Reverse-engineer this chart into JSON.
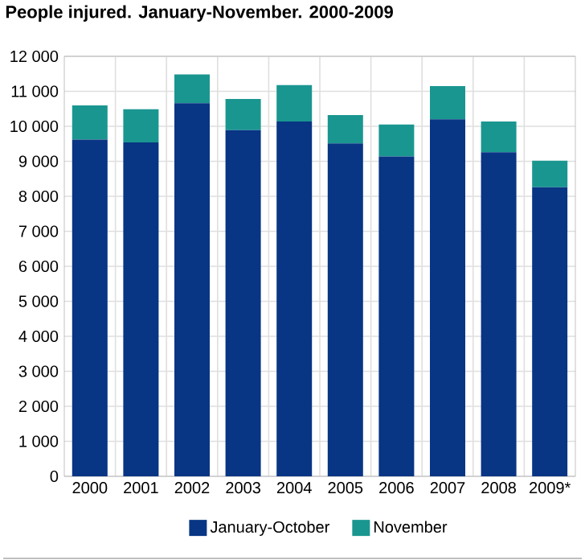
{
  "chart_data": {
    "type": "bar",
    "title": "People injured. January-November. 2000-2009",
    "stacked": true,
    "categories": [
      "2000",
      "2001",
      "2002",
      "2003",
      "2004",
      "2005",
      "2006",
      "2007",
      "2008",
      "2009*"
    ],
    "series": [
      {
        "name": "January-October",
        "color": "#083584",
        "values": [
          9620,
          9540,
          10660,
          9890,
          10140,
          9510,
          9140,
          10200,
          9260,
          8260
        ]
      },
      {
        "name": "November",
        "color": "#1a9690",
        "values": [
          980,
          950,
          820,
          890,
          1040,
          810,
          910,
          950,
          880,
          760
        ]
      }
    ],
    "ylim": [
      0,
      12000
    ],
    "yticks": [
      0,
      {
        "value": 1000,
        "label": "1 000"
      },
      {
        "value": 2000,
        "label": "2 000"
      },
      {
        "value": 3000,
        "label": "3 000"
      },
      {
        "value": 4000,
        "label": "4 000"
      },
      {
        "value": 5000,
        "label": "5 000"
      },
      {
        "value": 6000,
        "label": "6 000"
      },
      {
        "value": 7000,
        "label": "7 000"
      },
      {
        "value": 8000,
        "label": "8 000"
      },
      {
        "value": 9000,
        "label": "9 000"
      },
      {
        "value": 10000,
        "label": "10 000"
      },
      {
        "value": 11000,
        "label": "11 000"
      },
      {
        "value": 12000,
        "label": "12 000"
      }
    ],
    "grid": true,
    "legend": "bottom"
  }
}
